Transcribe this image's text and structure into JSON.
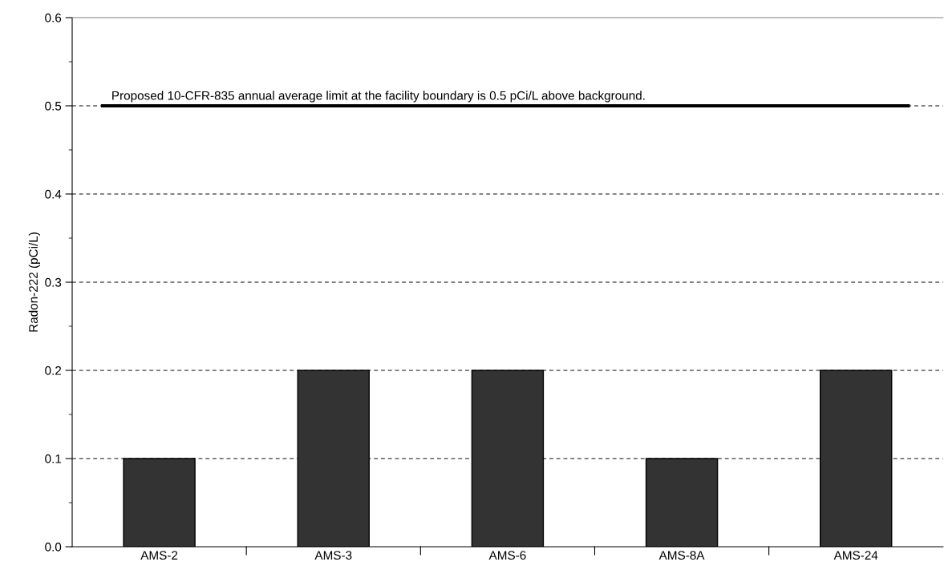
{
  "chart_data": {
    "type": "bar",
    "ylabel": "Radon-222 (pCi/L)",
    "categories": [
      "AMS-2",
      "AMS-3",
      "AMS-6",
      "AMS-8A",
      "AMS-24"
    ],
    "values": [
      0.1,
      0.2,
      0.2,
      0.1,
      0.2
    ],
    "color": "#333333",
    "ylim": [
      0,
      0.6
    ],
    "yticks": [
      {
        "value": 0,
        "label": "0.0"
      },
      {
        "value": 0.05,
        "label": null
      },
      0.1,
      {
        "value": 0.15,
        "label": null
      },
      0.2,
      {
        "value": 0.25,
        "label": null
      },
      0.3,
      {
        "value": 0.35,
        "label": null
      },
      0.4,
      {
        "value": 0.45,
        "label": null
      },
      0.5,
      {
        "value": 0.55,
        "label": null
      },
      0.6
    ],
    "ref_lines": [
      {
        "axis": "y",
        "value": 0.5,
        "label": "Proposed 10-CFR-835 annual average limit at the facility boundary is 0.5 pCi/L above background.",
        "color": "#000000",
        "line_style": "solid"
      }
    ],
    "grid": "y",
    "legend": false
  }
}
